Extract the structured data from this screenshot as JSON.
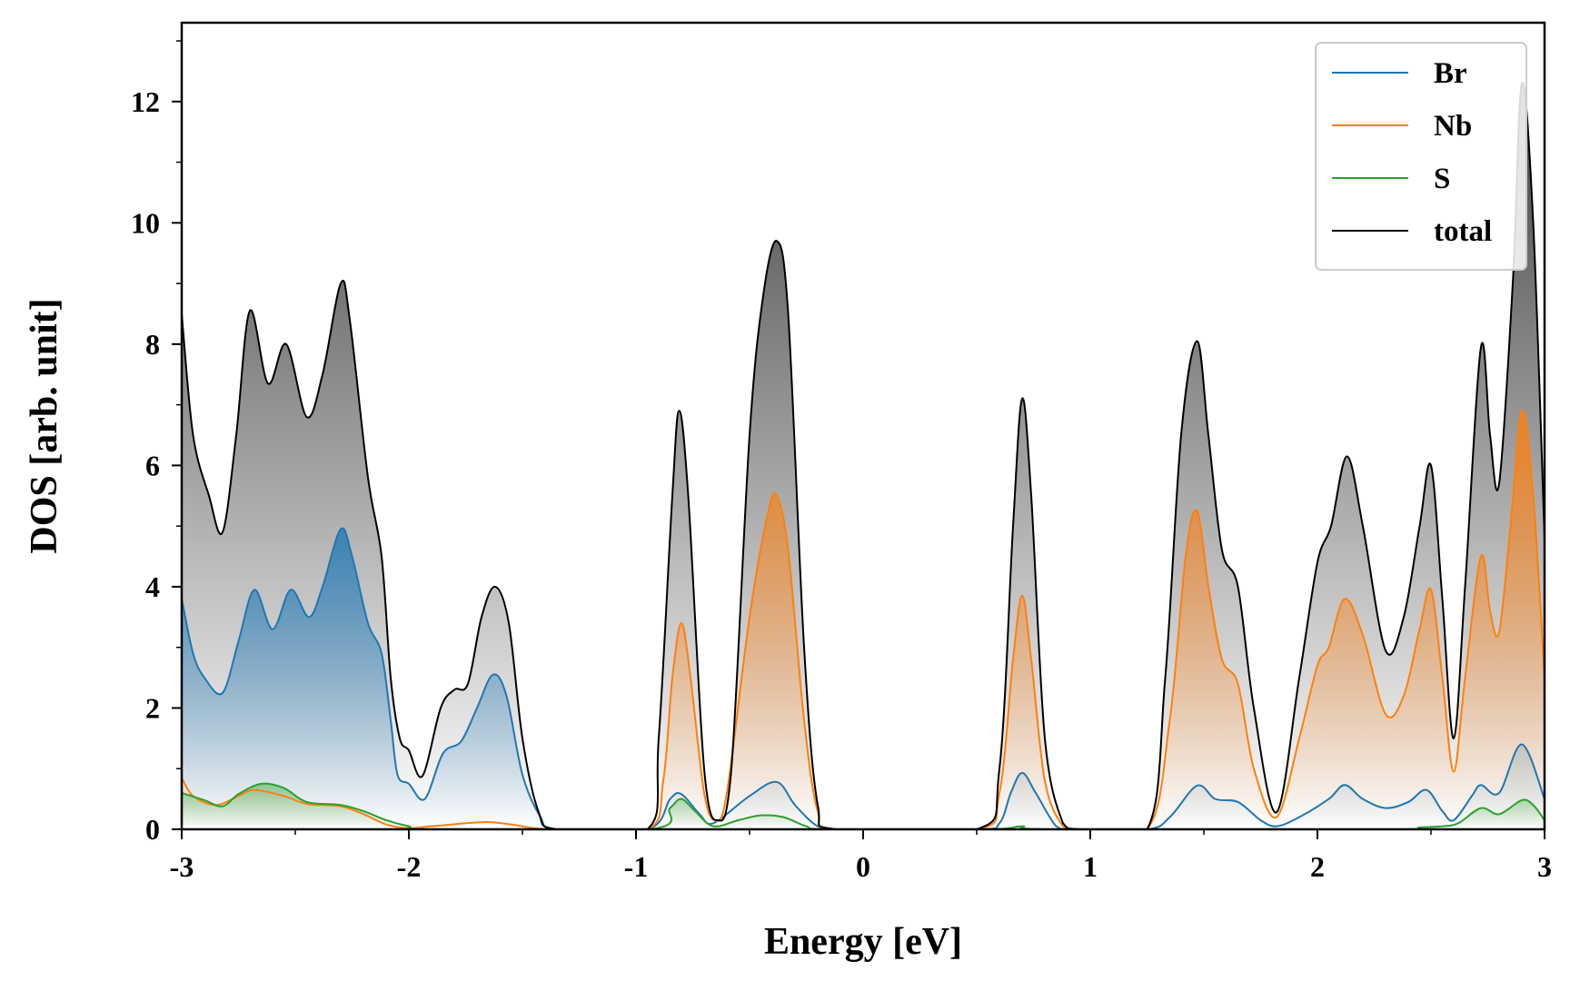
{
  "chart_data": {
    "type": "area",
    "xlabel": "Energy [eV]",
    "ylabel": "DOS [arb. unit]",
    "xlim": [
      -3,
      3
    ],
    "ylim": [
      0,
      13.3
    ],
    "xticks": [
      -3,
      -2,
      -1,
      0,
      1,
      2,
      3
    ],
    "yticks": [
      0,
      2,
      4,
      6,
      8,
      10,
      12
    ],
    "grid": false,
    "legend_position": "top-right",
    "series": [
      {
        "name": "Br",
        "color": "#1f77b4",
        "points": [
          [
            -3.0,
            3.8
          ],
          [
            -2.95,
            2.9
          ],
          [
            -2.9,
            2.5
          ],
          [
            -2.82,
            2.25
          ],
          [
            -2.75,
            3.1
          ],
          [
            -2.68,
            3.95
          ],
          [
            -2.6,
            3.3
          ],
          [
            -2.52,
            3.95
          ],
          [
            -2.44,
            3.5
          ],
          [
            -2.38,
            4.0
          ],
          [
            -2.3,
            4.95
          ],
          [
            -2.25,
            4.5
          ],
          [
            -2.18,
            3.4
          ],
          [
            -2.12,
            2.9
          ],
          [
            -2.08,
            1.8
          ],
          [
            -2.05,
            0.9
          ],
          [
            -2.0,
            0.75
          ],
          [
            -1.93,
            0.5
          ],
          [
            -1.85,
            1.25
          ],
          [
            -1.77,
            1.45
          ],
          [
            -1.7,
            2.0
          ],
          [
            -1.63,
            2.55
          ],
          [
            -1.57,
            2.2
          ],
          [
            -1.5,
            0.9
          ],
          [
            -1.42,
            0.2
          ],
          [
            -1.35,
            0.0
          ],
          [
            -0.95,
            0.0
          ],
          [
            -0.85,
            0.5
          ],
          [
            -0.8,
            0.58
          ],
          [
            -0.72,
            0.25
          ],
          [
            -0.66,
            0.1
          ],
          [
            -0.5,
            0.55
          ],
          [
            -0.38,
            0.78
          ],
          [
            -0.3,
            0.4
          ],
          [
            -0.2,
            0.05
          ],
          [
            -0.1,
            0.0
          ],
          [
            0.5,
            0.0
          ],
          [
            0.6,
            0.1
          ],
          [
            0.65,
            0.6
          ],
          [
            0.7,
            0.93
          ],
          [
            0.76,
            0.6
          ],
          [
            0.85,
            0.05
          ],
          [
            0.92,
            0.0
          ],
          [
            1.25,
            0.0
          ],
          [
            1.35,
            0.2
          ],
          [
            1.47,
            0.72
          ],
          [
            1.55,
            0.5
          ],
          [
            1.65,
            0.45
          ],
          [
            1.75,
            0.15
          ],
          [
            1.82,
            0.05
          ],
          [
            1.92,
            0.2
          ],
          [
            2.05,
            0.5
          ],
          [
            2.12,
            0.73
          ],
          [
            2.2,
            0.5
          ],
          [
            2.3,
            0.35
          ],
          [
            2.4,
            0.45
          ],
          [
            2.48,
            0.65
          ],
          [
            2.55,
            0.3
          ],
          [
            2.6,
            0.15
          ],
          [
            2.68,
            0.55
          ],
          [
            2.72,
            0.73
          ],
          [
            2.8,
            0.6
          ],
          [
            2.9,
            1.4
          ],
          [
            3.0,
            0.5
          ]
        ]
      },
      {
        "name": "Nb",
        "color": "#ff7f0e",
        "points": [
          [
            -3.0,
            0.85
          ],
          [
            -2.95,
            0.55
          ],
          [
            -2.85,
            0.4
          ],
          [
            -2.75,
            0.55
          ],
          [
            -2.68,
            0.65
          ],
          [
            -2.55,
            0.55
          ],
          [
            -2.45,
            0.42
          ],
          [
            -2.3,
            0.38
          ],
          [
            -2.2,
            0.25
          ],
          [
            -2.1,
            0.08
          ],
          [
            -2.0,
            0.02
          ],
          [
            -1.9,
            0.05
          ],
          [
            -1.75,
            0.1
          ],
          [
            -1.65,
            0.12
          ],
          [
            -1.55,
            0.08
          ],
          [
            -1.45,
            0.02
          ],
          [
            -1.35,
            0.0
          ],
          [
            -0.95,
            0.0
          ],
          [
            -0.88,
            0.8
          ],
          [
            -0.84,
            2.5
          ],
          [
            -0.8,
            3.4
          ],
          [
            -0.76,
            2.5
          ],
          [
            -0.7,
            0.6
          ],
          [
            -0.65,
            0.15
          ],
          [
            -0.6,
            0.6
          ],
          [
            -0.5,
            3.5
          ],
          [
            -0.42,
            5.2
          ],
          [
            -0.38,
            5.5
          ],
          [
            -0.33,
            4.6
          ],
          [
            -0.26,
            1.8
          ],
          [
            -0.2,
            0.3
          ],
          [
            -0.12,
            0.0
          ],
          [
            0.5,
            0.0
          ],
          [
            0.6,
            0.6
          ],
          [
            0.66,
            2.8
          ],
          [
            0.7,
            3.85
          ],
          [
            0.74,
            2.8
          ],
          [
            0.8,
            0.8
          ],
          [
            0.88,
            0.05
          ],
          [
            0.95,
            0.0
          ],
          [
            1.25,
            0.0
          ],
          [
            1.35,
            1.8
          ],
          [
            1.42,
            4.5
          ],
          [
            1.47,
            5.25
          ],
          [
            1.52,
            4.0
          ],
          [
            1.58,
            2.8
          ],
          [
            1.65,
            2.4
          ],
          [
            1.72,
            1.0
          ],
          [
            1.82,
            0.2
          ],
          [
            1.92,
            1.5
          ],
          [
            2.0,
            2.7
          ],
          [
            2.05,
            3.0
          ],
          [
            2.12,
            3.8
          ],
          [
            2.2,
            3.2
          ],
          [
            2.3,
            1.9
          ],
          [
            2.38,
            2.2
          ],
          [
            2.45,
            3.3
          ],
          [
            2.5,
            3.95
          ],
          [
            2.55,
            2.5
          ],
          [
            2.6,
            0.95
          ],
          [
            2.65,
            2.5
          ],
          [
            2.72,
            4.5
          ],
          [
            2.76,
            3.6
          ],
          [
            2.8,
            3.25
          ],
          [
            2.85,
            5.0
          ],
          [
            2.9,
            6.9
          ],
          [
            2.95,
            5.5
          ],
          [
            3.0,
            2.5
          ]
        ]
      },
      {
        "name": "S",
        "color": "#2ca02c",
        "points": [
          [
            -3.0,
            0.6
          ],
          [
            -2.9,
            0.48
          ],
          [
            -2.82,
            0.38
          ],
          [
            -2.75,
            0.58
          ],
          [
            -2.65,
            0.75
          ],
          [
            -2.55,
            0.68
          ],
          [
            -2.45,
            0.45
          ],
          [
            -2.3,
            0.4
          ],
          [
            -2.2,
            0.3
          ],
          [
            -2.1,
            0.15
          ],
          [
            -2.0,
            0.05
          ],
          [
            -1.9,
            0.0
          ],
          [
            -0.95,
            0.0
          ],
          [
            -0.85,
            0.35
          ],
          [
            -0.8,
            0.5
          ],
          [
            -0.74,
            0.3
          ],
          [
            -0.66,
            0.05
          ],
          [
            -0.55,
            0.15
          ],
          [
            -0.45,
            0.23
          ],
          [
            -0.35,
            0.2
          ],
          [
            -0.25,
            0.05
          ],
          [
            -0.15,
            0.0
          ],
          [
            0.55,
            0.0
          ],
          [
            0.7,
            0.05
          ],
          [
            0.85,
            0.0
          ],
          [
            2.3,
            0.0
          ],
          [
            2.45,
            0.03
          ],
          [
            2.55,
            0.05
          ],
          [
            2.62,
            0.1
          ],
          [
            2.72,
            0.35
          ],
          [
            2.8,
            0.25
          ],
          [
            2.9,
            0.48
          ],
          [
            2.95,
            0.4
          ],
          [
            3.0,
            0.15
          ]
        ]
      },
      {
        "name": "total",
        "color": "#000000",
        "points": [
          [
            -3.0,
            8.5
          ],
          [
            -2.95,
            6.5
          ],
          [
            -2.88,
            5.5
          ],
          [
            -2.82,
            4.9
          ],
          [
            -2.76,
            6.5
          ],
          [
            -2.7,
            8.55
          ],
          [
            -2.62,
            7.35
          ],
          [
            -2.54,
            8.0
          ],
          [
            -2.45,
            6.8
          ],
          [
            -2.38,
            7.5
          ],
          [
            -2.3,
            9.0
          ],
          [
            -2.26,
            8.4
          ],
          [
            -2.18,
            5.8
          ],
          [
            -2.12,
            4.5
          ],
          [
            -2.08,
            2.5
          ],
          [
            -2.04,
            1.5
          ],
          [
            -2.0,
            1.3
          ],
          [
            -1.94,
            0.88
          ],
          [
            -1.86,
            2.0
          ],
          [
            -1.8,
            2.3
          ],
          [
            -1.74,
            2.4
          ],
          [
            -1.68,
            3.5
          ],
          [
            -1.62,
            4.0
          ],
          [
            -1.56,
            3.4
          ],
          [
            -1.5,
            1.5
          ],
          [
            -1.43,
            0.3
          ],
          [
            -1.35,
            0.0
          ],
          [
            -0.95,
            0.0
          ],
          [
            -0.9,
            1.5
          ],
          [
            -0.84,
            5.5
          ],
          [
            -0.81,
            6.9
          ],
          [
            -0.77,
            5.5
          ],
          [
            -0.7,
            1.0
          ],
          [
            -0.64,
            0.15
          ],
          [
            -0.58,
            1.0
          ],
          [
            -0.5,
            6.5
          ],
          [
            -0.44,
            8.8
          ],
          [
            -0.38,
            9.7
          ],
          [
            -0.33,
            8.5
          ],
          [
            -0.26,
            3.0
          ],
          [
            -0.2,
            0.4
          ],
          [
            -0.12,
            0.0
          ],
          [
            0.5,
            0.0
          ],
          [
            0.6,
            1.0
          ],
          [
            0.66,
            5.0
          ],
          [
            0.7,
            7.1
          ],
          [
            0.74,
            5.5
          ],
          [
            0.8,
            1.5
          ],
          [
            0.88,
            0.1
          ],
          [
            0.95,
            0.0
          ],
          [
            1.25,
            0.0
          ],
          [
            1.33,
            2.5
          ],
          [
            1.4,
            6.5
          ],
          [
            1.47,
            8.05
          ],
          [
            1.52,
            6.5
          ],
          [
            1.58,
            4.6
          ],
          [
            1.65,
            4.0
          ],
          [
            1.72,
            2.0
          ],
          [
            1.82,
            0.28
          ],
          [
            1.92,
            2.5
          ],
          [
            2.0,
            4.4
          ],
          [
            2.06,
            5.0
          ],
          [
            2.13,
            6.15
          ],
          [
            2.2,
            5.0
          ],
          [
            2.3,
            2.95
          ],
          [
            2.38,
            3.5
          ],
          [
            2.45,
            5.0
          ],
          [
            2.5,
            6.0
          ],
          [
            2.55,
            3.8
          ],
          [
            2.6,
            1.5
          ],
          [
            2.65,
            4.0
          ],
          [
            2.72,
            7.95
          ],
          [
            2.76,
            6.5
          ],
          [
            2.8,
            5.7
          ],
          [
            2.86,
            9.0
          ],
          [
            2.9,
            12.3
          ],
          [
            2.95,
            10.0
          ],
          [
            3.0,
            4.8
          ]
        ]
      }
    ]
  }
}
